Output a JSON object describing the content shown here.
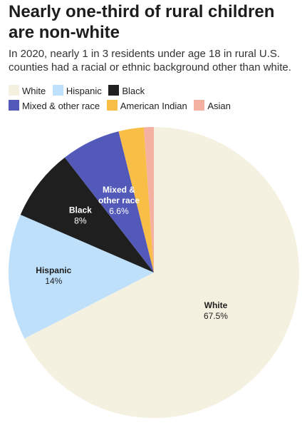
{
  "title": "Nearly one-third of rural children are non-white",
  "subtitle": "In 2020, nearly 1 in 3 residents under age 18 in rural U.S. counties had a racial or ethnic background other than white.",
  "chart_data": {
    "type": "pie",
    "title": "Nearly one-third of rural children are non-white",
    "subtitle": "In 2020, nearly 1 in 3 residents under age 18 in rural U.S. counties had a racial or ethnic background other than white.",
    "legend_position": "top",
    "slices": [
      {
        "name": "White",
        "value": 67.5,
        "value_label": "67.5%",
        "slice_label": [
          "White"
        ],
        "color": "#f5f1e1",
        "text_color": "#1d1d1d"
      },
      {
        "name": "Hispanic",
        "value": 14,
        "value_label": "14%",
        "slice_label": [
          "Hispanic"
        ],
        "color": "#bfe0fb",
        "text_color": "#1d1d1d"
      },
      {
        "name": "Black",
        "value": 8,
        "value_label": "8%",
        "slice_label": [
          "Black"
        ],
        "color": "#1f1f1f",
        "text_color": "#ffffff"
      },
      {
        "name": "Mixed & other race",
        "value": 6.6,
        "value_label": "6.6%",
        "slice_label": [
          "Mixed &",
          "other race"
        ],
        "color": "#5259b9",
        "text_color": "#ffffff"
      },
      {
        "name": "American Indian",
        "value": 2.8,
        "value_label": "",
        "slice_label": [],
        "color": "#f9be46",
        "text_color": "#1d1d1d"
      },
      {
        "name": "Asian",
        "value": 1.1,
        "value_label": "",
        "slice_label": [],
        "color": "#f4b0a0",
        "text_color": "#1d1d1d"
      }
    ]
  }
}
